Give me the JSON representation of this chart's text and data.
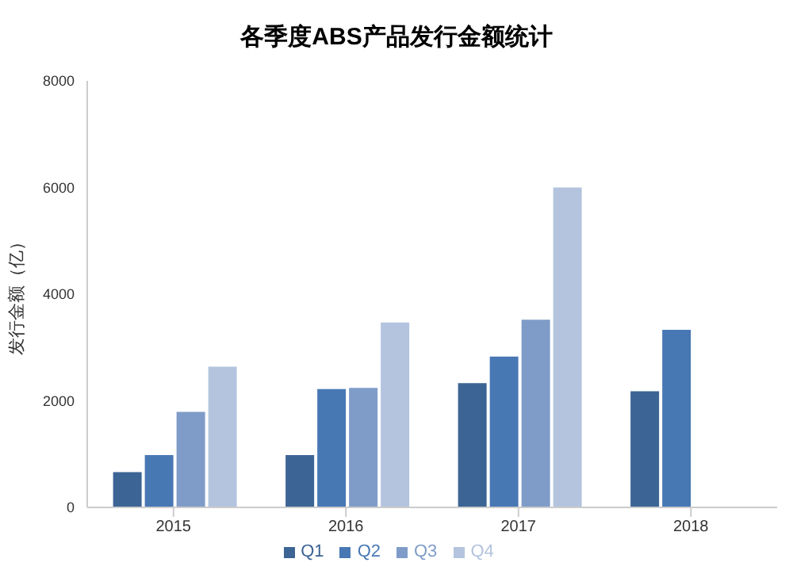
{
  "chart_data": {
    "type": "bar",
    "title": "各季度ABS产品发行金额统计",
    "ylabel": "发行金额（亿）",
    "categories": [
      "2015",
      "2016",
      "2017",
      "2018"
    ],
    "series": [
      {
        "name": "Q1",
        "color": "#3c6494",
        "values": [
          660,
          980,
          2330,
          2180
        ]
      },
      {
        "name": "Q2",
        "color": "#4878b4",
        "values": [
          980,
          2220,
          2830,
          3330
        ]
      },
      {
        "name": "Q3",
        "color": "#7f9cc8",
        "values": [
          1790,
          2240,
          3520,
          null
        ]
      },
      {
        "name": "Q4",
        "color": "#b4c4de",
        "values": [
          2640,
          3470,
          6000,
          null
        ]
      }
    ],
    "ylim": [
      0,
      8000
    ],
    "yticks": [
      0,
      2000,
      4000,
      6000,
      8000
    ],
    "grid": false,
    "legend": "bottom"
  }
}
